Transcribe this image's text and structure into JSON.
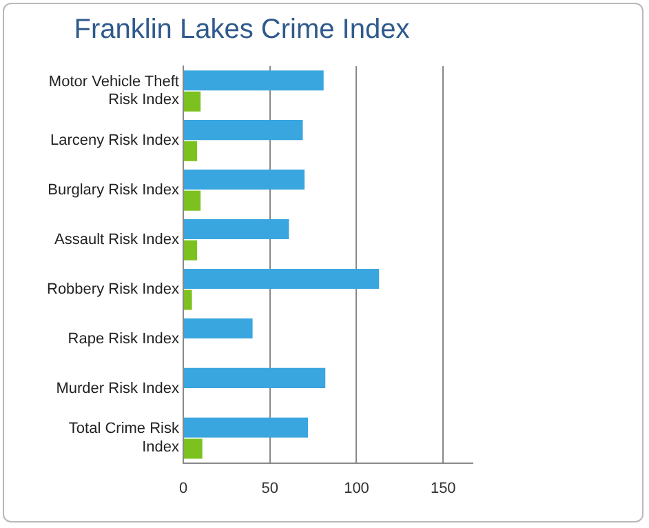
{
  "chart_data": {
    "type": "bar",
    "orientation": "horizontal",
    "title": "Franklin Lakes Crime Index",
    "categories": [
      "Motor Vehicle Theft Risk Index",
      "Larceny Risk Index",
      "Burglary Risk Index",
      "Assault Risk Index",
      "Robbery Risk Index",
      "Rape Risk Index",
      "Murder Risk Index",
      "Total Crime Risk Index"
    ],
    "series": [
      {
        "color": "#3aa6df",
        "values": [
          81,
          69,
          70,
          61,
          113,
          40,
          82,
          72
        ]
      },
      {
        "color": "#7cc11f",
        "values": [
          10,
          8,
          10,
          8,
          5,
          null,
          null,
          11
        ]
      }
    ],
    "xlim": [
      0,
      167
    ],
    "xticks": [
      0,
      50,
      100,
      150
    ],
    "grid": "x",
    "legend": false
  }
}
